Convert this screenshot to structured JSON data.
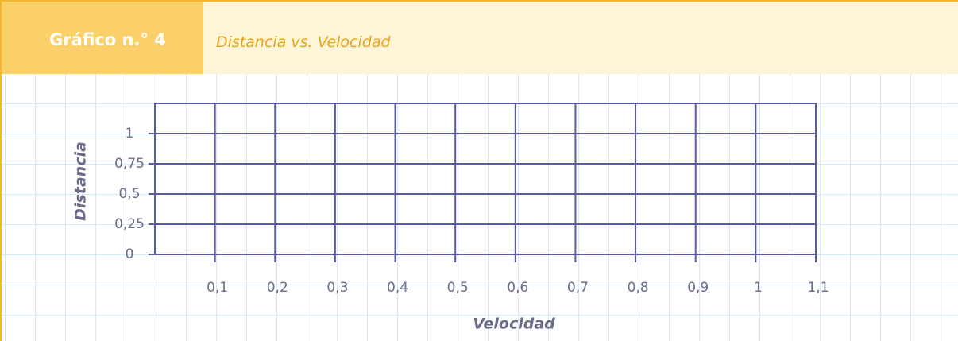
{
  "chart_data": {
    "type": "line",
    "title": "Gráfico n.° 4",
    "subtitle": "Distancia vs. Velocidad",
    "xlabel": "Velocidad",
    "ylabel": "Distancia",
    "xlim": [
      0,
      1.1
    ],
    "ylim": [
      0,
      1.25
    ],
    "xticks": [
      {
        "value": 0.1,
        "label": "0,1"
      },
      {
        "value": 0.2,
        "label": "0,2"
      },
      {
        "value": 0.3,
        "label": "0,3"
      },
      {
        "value": 0.4,
        "label": "0,4"
      },
      {
        "value": 0.5,
        "label": "0,5"
      },
      {
        "value": 0.6,
        "label": "0,6"
      },
      {
        "value": 0.7,
        "label": "0,7"
      },
      {
        "value": 0.8,
        "label": "0,8"
      },
      {
        "value": 0.9,
        "label": "0,9"
      },
      1,
      {
        "value": 1.1,
        "label": "1,1"
      }
    ],
    "yticks": [
      0,
      {
        "value": 0.25,
        "label": "0,25"
      },
      {
        "value": 0.5,
        "label": "0,5"
      },
      {
        "value": 0.75,
        "label": "0,75"
      },
      1
    ],
    "grid": true,
    "color": "#5b5ba3"
  }
}
